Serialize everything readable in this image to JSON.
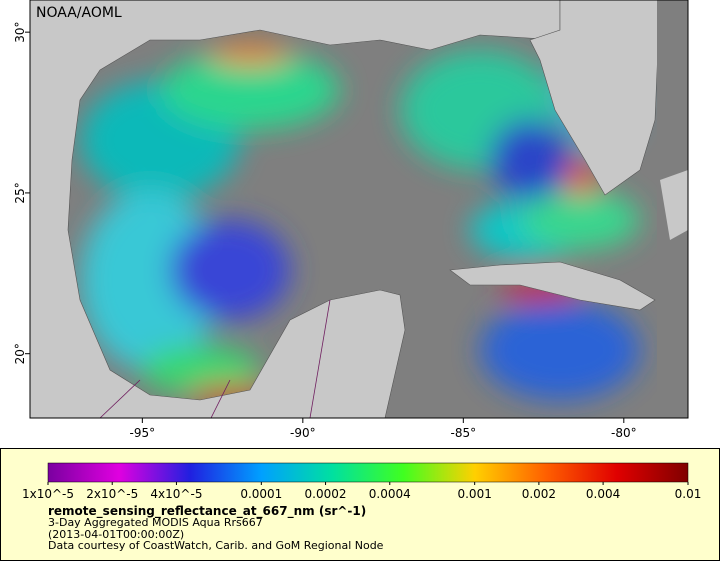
{
  "map": {
    "watermark": "NOAA/AOML",
    "xlim": [
      -98.5,
      -78
    ],
    "ylim": [
      18,
      31
    ],
    "xticks": [
      {
        "value": -95,
        "label": "-95°"
      },
      {
        "value": -90,
        "label": "-90°"
      },
      {
        "value": -85,
        "label": "-85°"
      },
      {
        "value": -80,
        "label": "-80°"
      }
    ],
    "yticks": [
      {
        "value": 20,
        "label": "20°"
      },
      {
        "value": 25,
        "label": "25°"
      },
      {
        "value": 30,
        "label": "30°"
      }
    ]
  },
  "colorbar": {
    "log": true,
    "lim": [
      1e-05,
      0.01
    ],
    "colors": [
      "#7a00a0",
      "#e000e0",
      "#2020e0",
      "#00a0ff",
      "#00e0a0",
      "#40ff20",
      "#ffd000",
      "#ff6000",
      "#e00000",
      "#800000"
    ],
    "ticks": [
      {
        "value": 1e-05,
        "label": "1x10^-5"
      },
      {
        "value": 2e-05,
        "label": "2x10^-5"
      },
      {
        "value": 4e-05,
        "label": "4x10^-5"
      },
      0.0001,
      0.0002,
      0.0004,
      0.001,
      0.002,
      0.004,
      0.01
    ]
  },
  "legend": {
    "variable": "remote_sensing_reflectance_at_667_nm (sr^-1)",
    "description": "3-Day Aggregated MODIS Aqua Rrs667",
    "time": "(2013-04-01T00:00:00Z)",
    "credit": "Data courtesy of CoastWatch, Carib. and GoM Regional Node"
  }
}
